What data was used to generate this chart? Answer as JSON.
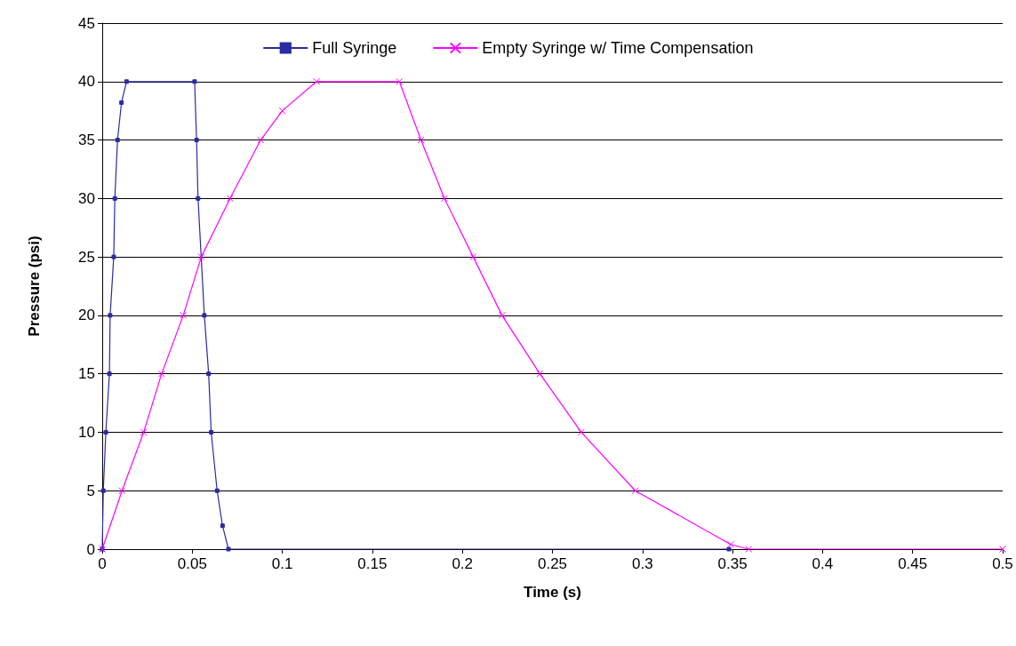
{
  "chart_data": {
    "type": "line",
    "xlabel": "Time (s)",
    "ylabel": "Pressure (psi)",
    "xlim": [
      0,
      0.5
    ],
    "xticks": [
      0,
      0.05,
      0.1,
      0.15,
      0.2,
      0.25,
      0.3,
      0.35,
      0.4,
      0.45,
      0.5
    ],
    "ylim": [
      0,
      45
    ],
    "yticks": [
      0,
      5,
      10,
      15,
      20,
      25,
      30,
      35,
      40,
      45
    ],
    "grid": "y",
    "legend": "top",
    "line_style": "solid",
    "series": [
      {
        "name": "Full Syringe",
        "color": "#2b2ba0",
        "marker": "square",
        "x": [
          0,
          0.0006,
          0.002,
          0.004,
          0.0044,
          0.0064,
          0.007,
          0.0085,
          0.0107,
          0.0135,
          0.0513,
          0.0524,
          0.0532,
          0.0567,
          0.0591,
          0.0605,
          0.0638,
          0.0668,
          0.0701,
          0.348
        ],
        "values": [
          0,
          5,
          10,
          15,
          20,
          25,
          30,
          35,
          38.2,
          40,
          40,
          35,
          30,
          20,
          15,
          10,
          5,
          2,
          0,
          0
        ]
      },
      {
        "name": "Empty Syringe w/ Time Compensation",
        "color": "#ff00ff",
        "marker": "cross",
        "x": [
          0,
          0.011,
          0.023,
          0.033,
          0.045,
          0.055,
          0.071,
          0.088,
          0.1,
          0.119,
          0.165,
          0.177,
          0.19,
          0.206,
          0.222,
          0.243,
          0.266,
          0.296,
          0.349,
          0.359,
          0.5
        ],
        "values": [
          0,
          5,
          10,
          15,
          20,
          25,
          30,
          35,
          37.5,
          40,
          40,
          35,
          30,
          25,
          20,
          15,
          10,
          5,
          0.4,
          0,
          0
        ]
      }
    ]
  }
}
